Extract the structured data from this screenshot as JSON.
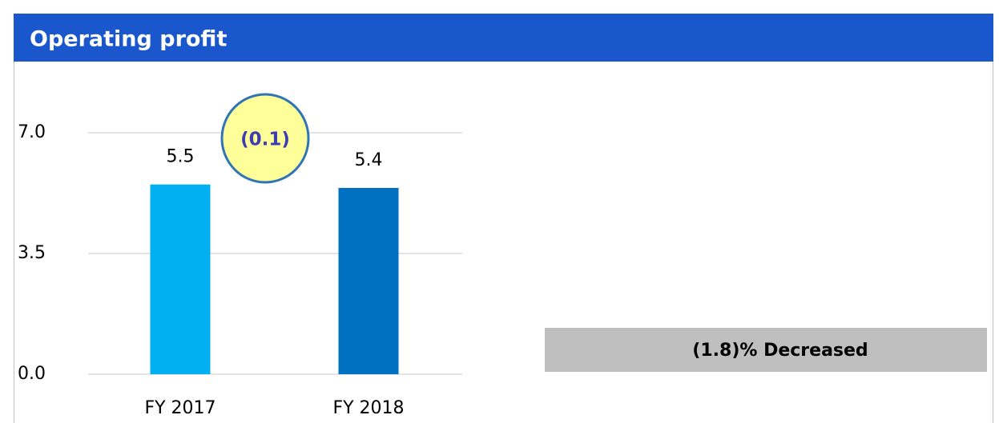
{
  "chart_data": {
    "type": "bar",
    "title": "Operating profit",
    "categories": [
      "FY 2017",
      "FY 2018"
    ],
    "values": [
      5.5,
      5.4
    ],
    "colors": [
      "#00b0f0",
      "#0070c0"
    ],
    "ylim": [
      0,
      7
    ],
    "yticks": [
      {
        "value": 0,
        "label": "0.0"
      },
      {
        "value": 3.5,
        "label": "3.5"
      },
      {
        "value": 7,
        "label": "7.0"
      }
    ],
    "grid": true,
    "annotations": [
      "(0.1)",
      "(1.8)% Decreased"
    ]
  }
}
